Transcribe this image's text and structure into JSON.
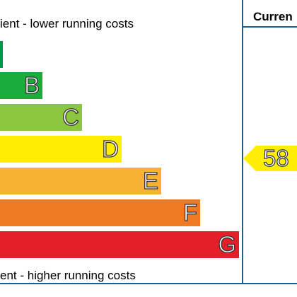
{
  "top_caption": "ient - lower running costs",
  "bottom_caption": "ent - higher running costs",
  "current_header": "Curren",
  "current_rating": "58",
  "bands": [
    {
      "letter": "",
      "color": "#00984a"
    },
    {
      "letter": "B",
      "color": "#1aad3c"
    },
    {
      "letter": "C",
      "color": "#8cc63f"
    },
    {
      "letter": "D",
      "color": "#ffee00"
    },
    {
      "letter": "E",
      "color": "#f7b233"
    },
    {
      "letter": "F",
      "color": "#ef7a24"
    },
    {
      "letter": "G",
      "color": "#e31f2a"
    }
  ],
  "arrow_color": "#ffee00"
}
